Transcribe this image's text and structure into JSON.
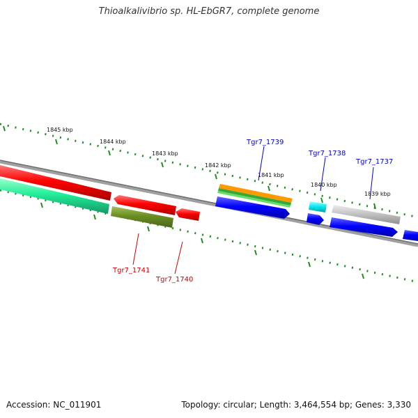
{
  "title": "Thioalkalivibrio sp. HL-EbGR7, complete genome",
  "footer": {
    "accession": "Accession: NC_011901",
    "summary": "Topology: circular; Length: 3,464,554 bp; Genes: 3,330"
  },
  "scale_labels": [
    "1845 kbp",
    "1844 kbp",
    "1843 kbp",
    "1842 kbp",
    "1841 kbp",
    "1840 kbp",
    "1839 kbp"
  ],
  "gene_labels": [
    {
      "text": "Tgr7_1739",
      "color": "#0000cc"
    },
    {
      "text": "Tgr7_1738",
      "color": "#0000cc"
    },
    {
      "text": "Tgr7_1737",
      "color": "#0000cc"
    },
    {
      "text": "Tgr7_1741",
      "color": "#cc0000"
    },
    {
      "text": "Tgr7_1740",
      "color": "#cc0000"
    }
  ],
  "colors": {
    "backbone": "#808080",
    "ticks": "#228b22",
    "red": "#ff0000",
    "blue": "#0000ff",
    "orange": "#ff9900",
    "green": "#33aa33",
    "lime": "#66dd66",
    "cyan": "#00e5ee",
    "gray": "#bfbfbf",
    "spring": "#22ee99",
    "olive": "#6b8e23"
  }
}
